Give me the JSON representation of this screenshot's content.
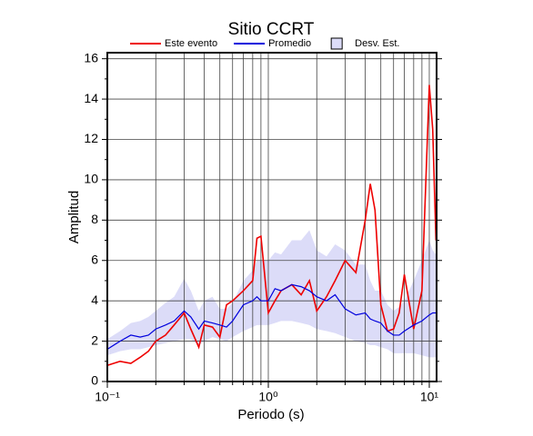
{
  "chart_data": {
    "type": "line",
    "title": "Sitio CCRT",
    "x_label": "Periodo (s)",
    "y_label": "Amplitud",
    "xscale": "log",
    "grid": true,
    "xlim": [
      0.1,
      11.1
    ],
    "ylim": [
      0,
      16.3
    ],
    "xticks": [
      {
        "value": 0.1,
        "label": "10⁻¹"
      },
      {
        "value": 1,
        "label": "10⁰"
      },
      {
        "value": 10,
        "label": "10¹"
      }
    ],
    "xminorticks": [
      0.2,
      0.3,
      0.4,
      0.5,
      0.6,
      0.7,
      0.8,
      0.9,
      2,
      3,
      4,
      5,
      6,
      7,
      8,
      9
    ],
    "yticks": [
      0,
      2,
      4,
      6,
      8,
      10,
      12,
      14,
      16
    ],
    "yminorticks": [
      1,
      3,
      5,
      7,
      9,
      11,
      13,
      15
    ],
    "x": [
      0.1,
      0.12,
      0.14,
      0.16,
      0.18,
      0.2,
      0.23,
      0.26,
      0.3,
      0.33,
      0.37,
      0.4,
      0.45,
      0.5,
      0.55,
      0.6,
      0.7,
      0.8,
      0.85,
      0.9,
      1.0,
      1.1,
      1.2,
      1.4,
      1.6,
      1.8,
      2.0,
      2.3,
      2.6,
      3.0,
      3.5,
      4.0,
      4.3,
      4.6,
      5.0,
      5.5,
      6.0,
      6.5,
      7.0,
      8.0,
      9.0,
      10.0,
      10.5,
      11.0
    ],
    "band": {
      "name": "Desv. Est.",
      "color": "#dcdcf8",
      "lower": [
        1.3,
        1.5,
        1.6,
        1.6,
        1.7,
        1.8,
        1.9,
        2.0,
        2.1,
        2.1,
        1.8,
        2.0,
        2.2,
        2.1,
        2.0,
        2.2,
        2.5,
        2.7,
        2.8,
        2.8,
        2.8,
        2.9,
        3.0,
        3.0,
        2.9,
        2.8,
        2.6,
        2.5,
        2.4,
        2.2,
        2.0,
        1.9,
        1.8,
        1.8,
        1.7,
        1.6,
        1.4,
        1.4,
        1.4,
        1.4,
        1.3,
        1.2,
        1.2,
        1.2
      ],
      "upper": [
        2.1,
        2.5,
        2.9,
        3.0,
        3.2,
        3.5,
        3.9,
        4.2,
        5.1,
        4.5,
        3.5,
        4.0,
        4.2,
        3.6,
        3.6,
        3.9,
        5.0,
        5.5,
        6.0,
        6.0,
        6.0,
        6.4,
        6.3,
        7.0,
        7.0,
        7.5,
        6.5,
        6.2,
        6.8,
        6.5,
        5.8,
        5.8,
        5.0,
        4.5,
        4.5,
        3.8,
        3.5,
        3.7,
        4.0,
        5.0,
        6.0,
        7.0,
        6.5,
        6.3
      ]
    },
    "series": [
      {
        "name": "Este evento",
        "color": "#ee0000",
        "values": [
          0.8,
          1.0,
          0.9,
          1.2,
          1.5,
          2.0,
          2.3,
          2.8,
          3.4,
          2.6,
          1.7,
          2.8,
          2.7,
          2.2,
          3.8,
          4.0,
          4.5,
          5.0,
          7.1,
          7.2,
          3.4,
          4.0,
          4.5,
          4.8,
          4.3,
          5.0,
          3.5,
          4.2,
          5.0,
          6.0,
          5.4,
          8.0,
          9.8,
          8.5,
          3.8,
          2.5,
          2.6,
          3.4,
          5.3,
          2.6,
          4.5,
          14.7,
          12.5,
          7.0
        ]
      },
      {
        "name": "Promedio",
        "color": "#0000dd",
        "values": [
          1.6,
          2.0,
          2.3,
          2.2,
          2.3,
          2.6,
          2.8,
          3.0,
          3.5,
          3.2,
          2.6,
          3.0,
          2.9,
          2.8,
          2.7,
          3.0,
          3.8,
          4.0,
          4.2,
          4.0,
          4.0,
          4.6,
          4.5,
          4.8,
          4.7,
          4.5,
          4.2,
          4.0,
          4.3,
          3.6,
          3.3,
          3.4,
          3.1,
          3.0,
          2.9,
          2.5,
          2.3,
          2.3,
          2.5,
          2.8,
          3.0,
          3.3,
          3.4,
          3.4
        ]
      }
    ]
  }
}
